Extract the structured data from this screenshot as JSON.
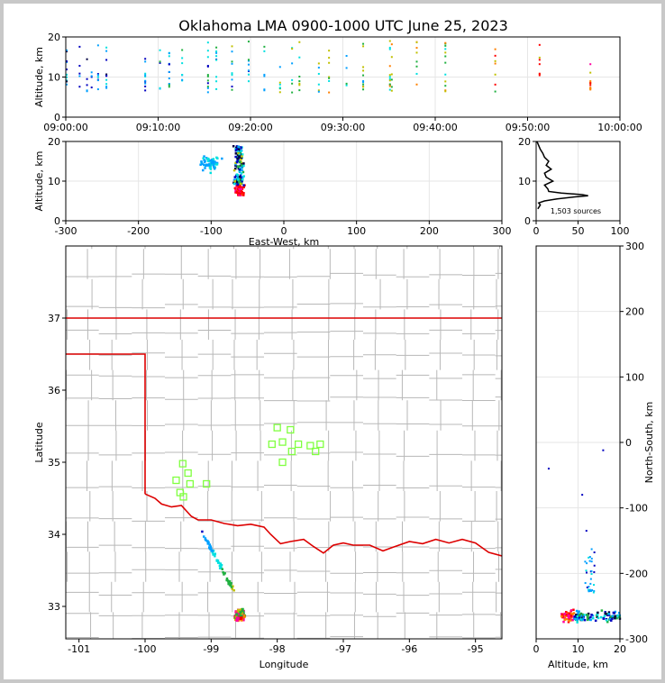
{
  "title": "Oklahoma LMA 0900-1000 UTC June 25, 2023",
  "colors": {
    "state_border": "#dd0000",
    "county_lines": "#b8b8b8",
    "station_marker": "#80ff40",
    "grid": "#e6e6e6",
    "colormap": [
      "#000040",
      "#0000c0",
      "#00a0ff",
      "#00e0e0",
      "#20b040",
      "#c0c000",
      "#ff8000",
      "#ff0000",
      "#ff00a0"
    ]
  },
  "chart_data": [
    {
      "id": "time-height",
      "type": "scatter",
      "xlabel": "",
      "ylabel": "Altitude, km",
      "xticks": [
        "09:00:00",
        "09:10:00",
        "09:20:00",
        "09:30:00",
        "09:40:00",
        "09:50:00",
        "10:00:00"
      ],
      "xlim_minutes": [
        0,
        60
      ],
      "ylim": [
        0,
        20
      ],
      "yticks": [
        0,
        10,
        20
      ],
      "grid": true,
      "source_columns_minutes": [
        0.1,
        1.5,
        2.3,
        2.8,
        3.5,
        4.4,
        8.6,
        10.2,
        11.2,
        12.6,
        15.4,
        16.3,
        18.0,
        19.8,
        21.5,
        23.2,
        24.5,
        25.3,
        27.4,
        28.5,
        30.4,
        32.2,
        35.1,
        35.3,
        38.0,
        41.1,
        46.5,
        51.3,
        56.8
      ]
    },
    {
      "id": "ew-altitude",
      "type": "scatter",
      "xlabel": "East-West, km",
      "ylabel": "Altitude, km",
      "xlim": [
        -300,
        300
      ],
      "ylim": [
        0,
        20
      ],
      "xticks": [
        -300,
        -200,
        -100,
        0,
        100,
        200,
        300
      ],
      "yticks": [
        0,
        10,
        20
      ],
      "grid": true
    },
    {
      "id": "altitude-histogram",
      "type": "line",
      "xlim": [
        0,
        100
      ],
      "ylim": [
        0,
        20
      ],
      "xticks": [
        0,
        50,
        100
      ],
      "yticks": [
        0,
        10,
        20
      ],
      "annotation": "1,503 sources",
      "altitude_km": [
        3,
        4,
        4.5,
        5,
        5.5,
        6,
        6.3,
        6.6,
        7,
        7.4,
        8,
        9,
        10,
        11,
        12,
        13,
        14,
        15,
        16,
        17,
        18,
        19,
        20
      ],
      "count": [
        2,
        5,
        3,
        10,
        25,
        45,
        62,
        55,
        30,
        15,
        14,
        10,
        20,
        12,
        10,
        18,
        12,
        15,
        10,
        8,
        5,
        3,
        1
      ]
    },
    {
      "id": "plan-view",
      "type": "map",
      "xlabel": "Longitude",
      "ylabel": "Latitude",
      "xlim": [
        -101.2,
        -94.6
      ],
      "ylim": [
        32.55,
        38.0
      ],
      "xticks": [
        -101,
        -100,
        -99,
        -98,
        -97,
        -96,
        -95
      ],
      "yticks": [
        33,
        34,
        35,
        36,
        37
      ],
      "stations": [
        {
          "lon": -98.0,
          "lat": 35.48
        },
        {
          "lon": -97.8,
          "lat": 35.45
        },
        {
          "lon": -98.08,
          "lat": 35.25
        },
        {
          "lon": -97.92,
          "lat": 35.28
        },
        {
          "lon": -97.78,
          "lat": 35.15
        },
        {
          "lon": -97.68,
          "lat": 35.25
        },
        {
          "lon": -97.42,
          "lat": 35.15
        },
        {
          "lon": -97.5,
          "lat": 35.23
        },
        {
          "lon": -97.35,
          "lat": 35.25
        },
        {
          "lon": -97.92,
          "lat": 35.0
        },
        {
          "lon": -99.43,
          "lat": 34.98
        },
        {
          "lon": -99.35,
          "lat": 34.85
        },
        {
          "lon": -99.53,
          "lat": 34.75
        },
        {
          "lon": -99.32,
          "lat": 34.7
        },
        {
          "lon": -99.47,
          "lat": 34.58
        },
        {
          "lon": -99.42,
          "lat": 34.52
        },
        {
          "lon": -99.07,
          "lat": 34.7
        }
      ]
    },
    {
      "id": "altitude-ns",
      "type": "scatter",
      "xlabel": "Altitude, km",
      "ylabel": "North-South, km",
      "xlim": [
        0,
        20
      ],
      "ylim": [
        -300,
        300
      ],
      "xticks": [
        0,
        10,
        20
      ],
      "yticks": [
        -300,
        -200,
        -100,
        0,
        100,
        200,
        300
      ],
      "grid": true
    }
  ]
}
